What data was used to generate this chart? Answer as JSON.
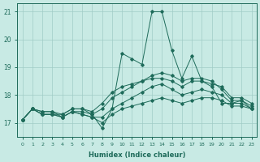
{
  "xlabel": "Humidex (Indice chaleur)",
  "xlim": [
    -0.5,
    23.5
  ],
  "ylim": [
    16.5,
    21.3
  ],
  "yticks": [
    17,
    18,
    19,
    20,
    21
  ],
  "xticks": [
    0,
    1,
    2,
    3,
    4,
    5,
    6,
    7,
    8,
    9,
    10,
    11,
    12,
    13,
    14,
    15,
    16,
    17,
    18,
    19,
    20,
    21,
    22,
    23
  ],
  "background_color": "#c8eae4",
  "grid_color": "#a0ccc6",
  "line_color": "#1e6b5a",
  "lines": [
    [
      17.1,
      17.5,
      17.4,
      17.4,
      17.2,
      17.4,
      17.4,
      17.3,
      16.8,
      17.5,
      19.5,
      19.3,
      19.1,
      21.0,
      21.0,
      19.6,
      18.6,
      19.4,
      18.5,
      18.3,
      17.7,
      17.7,
      17.8,
      17.5
    ],
    [
      17.1,
      17.5,
      17.4,
      17.4,
      17.3,
      17.5,
      17.5,
      17.4,
      17.7,
      18.1,
      18.3,
      18.4,
      18.5,
      18.6,
      18.6,
      18.5,
      18.3,
      18.5,
      18.5,
      18.4,
      18.3,
      17.9,
      17.9,
      17.7
    ],
    [
      17.1,
      17.5,
      17.3,
      17.3,
      17.3,
      17.5,
      17.5,
      17.3,
      17.5,
      17.9,
      18.1,
      18.3,
      18.5,
      18.7,
      18.8,
      18.7,
      18.5,
      18.6,
      18.6,
      18.5,
      18.2,
      17.8,
      17.8,
      17.6
    ],
    [
      17.1,
      17.5,
      17.3,
      17.3,
      17.2,
      17.4,
      17.3,
      17.2,
      17.2,
      17.5,
      17.7,
      17.9,
      18.1,
      18.3,
      18.4,
      18.2,
      18.0,
      18.1,
      18.2,
      18.1,
      18.0,
      17.7,
      17.7,
      17.5
    ],
    [
      17.1,
      17.5,
      17.3,
      17.3,
      17.2,
      17.4,
      17.3,
      17.2,
      17.0,
      17.3,
      17.5,
      17.6,
      17.7,
      17.8,
      17.9,
      17.8,
      17.7,
      17.8,
      17.9,
      17.9,
      17.8,
      17.6,
      17.6,
      17.5
    ]
  ]
}
